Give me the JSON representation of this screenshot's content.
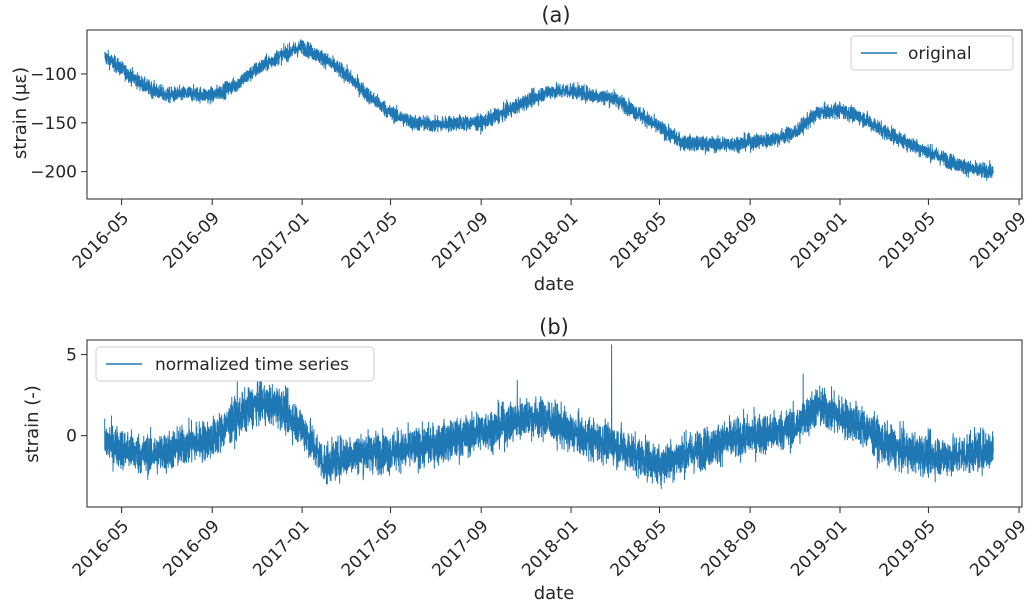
{
  "chart_data": [
    {
      "type": "line",
      "title": "(a)",
      "xlabel": "date",
      "ylabel": "strain (με)",
      "x_ticks": [
        "2016-05",
        "2016-09",
        "2017-01",
        "2017-05",
        "2017-09",
        "2018-01",
        "2018-05",
        "2018-09",
        "2019-01",
        "2019-05",
        "2019-09"
      ],
      "xlim": [
        "2016-03-15",
        "2019-09-05"
      ],
      "ylim": [
        -228,
        -55
      ],
      "y_ticks": [
        -200,
        -150,
        -100
      ],
      "y_tick_labels": [
        "−200",
        "−150",
        "−100"
      ],
      "grid": false,
      "legend_position": "top-right",
      "series": [
        {
          "name": "original",
          "color": "#1f77b4",
          "noise": 7,
          "points": [
            [
              "2016-04-08",
              -82
            ],
            [
              "2016-05-01",
              -95
            ],
            [
              "2016-06-01",
              -112
            ],
            [
              "2016-07-01",
              -122
            ],
            [
              "2016-08-01",
              -120
            ],
            [
              "2016-09-01",
              -122
            ],
            [
              "2016-10-01",
              -112
            ],
            [
              "2016-11-01",
              -95
            ],
            [
              "2016-12-01",
              -82
            ],
            [
              "2017-01-01",
              -72
            ],
            [
              "2017-02-01",
              -85
            ],
            [
              "2017-03-01",
              -100
            ],
            [
              "2017-04-01",
              -122
            ],
            [
              "2017-05-01",
              -140
            ],
            [
              "2017-06-01",
              -150
            ],
            [
              "2017-07-01",
              -152
            ],
            [
              "2017-08-01",
              -150
            ],
            [
              "2017-09-01",
              -150
            ],
            [
              "2017-10-01",
              -140
            ],
            [
              "2017-11-01",
              -128
            ],
            [
              "2017-12-01",
              -118
            ],
            [
              "2018-01-01",
              -117
            ],
            [
              "2018-02-01",
              -122
            ],
            [
              "2018-03-01",
              -125
            ],
            [
              "2018-04-01",
              -140
            ],
            [
              "2018-05-01",
              -155
            ],
            [
              "2018-06-01",
              -170
            ],
            [
              "2018-07-01",
              -172
            ],
            [
              "2018-08-01",
              -172
            ],
            [
              "2018-09-01",
              -170
            ],
            [
              "2018-10-01",
              -167
            ],
            [
              "2018-11-01",
              -160
            ],
            [
              "2018-12-01",
              -140
            ],
            [
              "2019-01-01",
              -137
            ],
            [
              "2019-02-01",
              -145
            ],
            [
              "2019-03-01",
              -158
            ],
            [
              "2019-04-01",
              -170
            ],
            [
              "2019-05-01",
              -180
            ],
            [
              "2019-06-01",
              -190
            ],
            [
              "2019-07-01",
              -198
            ],
            [
              "2019-07-28",
              -200
            ]
          ]
        }
      ]
    },
    {
      "type": "line",
      "title": "(b)",
      "xlabel": "date",
      "ylabel": "strain (-)",
      "x_ticks": [
        "2016-05",
        "2016-09",
        "2017-01",
        "2017-05",
        "2017-09",
        "2018-01",
        "2018-05",
        "2018-09",
        "2019-01",
        "2019-05",
        "2019-09"
      ],
      "xlim": [
        "2016-03-15",
        "2019-09-05"
      ],
      "ylim": [
        -4.4,
        5.9
      ],
      "y_ticks": [
        0,
        5
      ],
      "y_tick_labels": [
        "0",
        "5"
      ],
      "grid": false,
      "legend_position": "top-left",
      "series": [
        {
          "name": "normalized time series",
          "color": "#1f77b4",
          "noise": 1.1,
          "points": [
            [
              "2016-04-08",
              -0.3
            ],
            [
              "2016-05-01",
              -0.8
            ],
            [
              "2016-06-01",
              -1.2
            ],
            [
              "2016-07-01",
              -1.0
            ],
            [
              "2016-08-01",
              -0.5
            ],
            [
              "2016-09-01",
              -0.2
            ],
            [
              "2016-10-01",
              1.0
            ],
            [
              "2016-11-01",
              2.0
            ],
            [
              "2016-12-01",
              1.8
            ],
            [
              "2017-01-01",
              0.5
            ],
            [
              "2017-02-01",
              -1.8
            ],
            [
              "2017-03-01",
              -1.2
            ],
            [
              "2017-04-01",
              -1.0
            ],
            [
              "2017-05-01",
              -1.0
            ],
            [
              "2017-06-01",
              -0.8
            ],
            [
              "2017-07-01",
              -0.5
            ],
            [
              "2017-08-01",
              -0.2
            ],
            [
              "2017-09-01",
              0.3
            ],
            [
              "2017-10-01",
              0.6
            ],
            [
              "2017-11-01",
              1.2
            ],
            [
              "2017-12-01",
              1.0
            ],
            [
              "2018-01-01",
              0.2
            ],
            [
              "2018-02-01",
              -0.3
            ],
            [
              "2018-03-01",
              -0.5
            ],
            [
              "2018-04-01",
              -1.2
            ],
            [
              "2018-05-01",
              -1.8
            ],
            [
              "2018-06-01",
              -1.2
            ],
            [
              "2018-07-01",
              -0.8
            ],
            [
              "2018-08-01",
              -0.3
            ],
            [
              "2018-09-01",
              0.0
            ],
            [
              "2018-10-01",
              0.2
            ],
            [
              "2018-11-01",
              0.5
            ],
            [
              "2018-12-01",
              1.8
            ],
            [
              "2019-01-01",
              1.2
            ],
            [
              "2019-02-01",
              0.6
            ],
            [
              "2019-03-01",
              -0.5
            ],
            [
              "2019-04-01",
              -1.0
            ],
            [
              "2019-05-01",
              -1.2
            ],
            [
              "2019-06-01",
              -1.3
            ],
            [
              "2019-07-01",
              -1.0
            ],
            [
              "2019-07-28",
              -0.8
            ]
          ],
          "spikes": [
            [
              "2016-10-05",
              3.6
            ],
            [
              "2017-10-20",
              3.4
            ],
            [
              "2018-02-25",
              5.6
            ],
            [
              "2018-11-12",
              3.8
            ]
          ]
        }
      ]
    }
  ]
}
